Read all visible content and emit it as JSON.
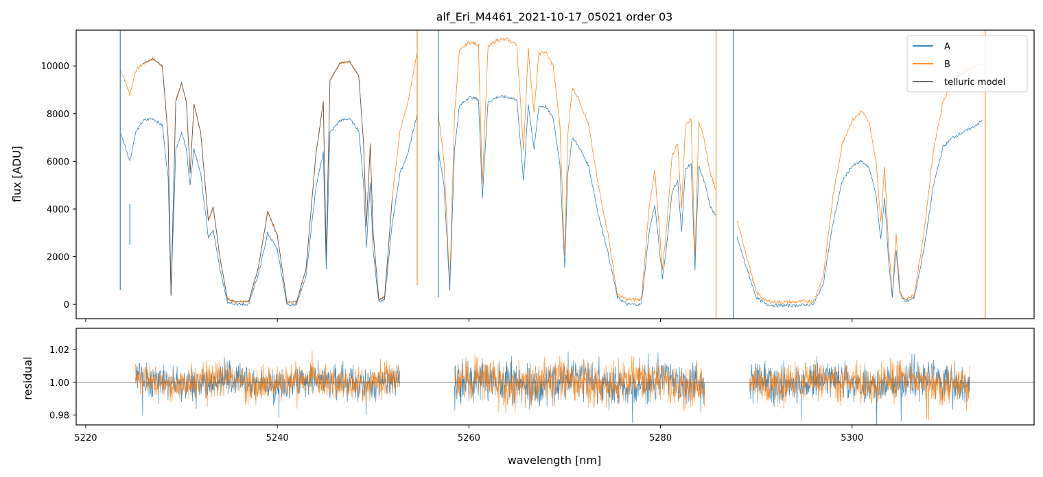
{
  "chart_data": [
    {
      "type": "line",
      "title": "alf_Eri_M4461_2021-10-17_05021  order 03",
      "xlabel": "",
      "ylabel": "flux [ADU]",
      "xlim": [
        5219,
        5319
      ],
      "ylim": [
        -600,
        11500
      ],
      "y_ticks": [
        0,
        2000,
        4000,
        6000,
        8000,
        10000
      ],
      "y_tick_labels": [
        "0",
        "2000",
        "4000",
        "6000",
        "8000",
        "10000"
      ],
      "x_ticks": [
        5220,
        5240,
        5260,
        5280,
        5300
      ],
      "legend": {
        "placement": "top-right",
        "entries": [
          {
            "label": "A",
            "color": "#1f77b4"
          },
          {
            "label": "B",
            "color": "#ff7f0e"
          },
          {
            "label": "telluric model",
            "color": "#555555"
          }
        ]
      },
      "series": [
        {
          "name": "B",
          "color": "#ff7f0e",
          "x": [
            5223.6,
            5224.0,
            5224.6,
            5225.2,
            5226.0,
            5227.0,
            5228.0,
            5228.6,
            5228.9,
            5229.4,
            5230.0,
            5230.5,
            5230.9,
            5231.3,
            5232.0,
            5232.8,
            5233.3,
            5234.0,
            5234.8,
            5236.0,
            5237.0,
            5238.0,
            5239.0,
            5240.0,
            5241.0,
            5242.0,
            5243.0,
            5244.0,
            5244.8,
            5245.1,
            5245.5,
            5246.5,
            5247.5,
            5248.5,
            5249.0,
            5249.3,
            5249.7,
            5250.0,
            5250.6,
            5251.2,
            5252.0,
            5252.8,
            5253.6,
            5254.2,
            5254.6
          ],
          "values": [
            9800,
            9500,
            8800,
            9800,
            10100,
            10300,
            10000,
            7000,
            400,
            8500,
            9300,
            8500,
            5500,
            8400,
            7200,
            3500,
            4100,
            2000,
            200,
            100,
            100,
            1500,
            3900,
            2900,
            100,
            100,
            1500,
            6200,
            8500,
            2000,
            9400,
            10100,
            10200,
            9600,
            6800,
            3300,
            6700,
            3000,
            200,
            300,
            4500,
            7300,
            8400,
            9700,
            10600
          ]
        },
        {
          "name": "A",
          "color": "#1f77b4",
          "x": [
            5223.6,
            5224.0,
            5224.6,
            5225.2,
            5226.0,
            5227.0,
            5228.0,
            5228.6,
            5228.9,
            5229.4,
            5230.0,
            5230.5,
            5230.9,
            5231.3,
            5232.0,
            5232.8,
            5233.3,
            5234.0,
            5234.8,
            5236.0,
            5237.0,
            5238.0,
            5239.0,
            5240.0,
            5241.0,
            5242.0,
            5243.0,
            5244.0,
            5244.8,
            5245.1,
            5245.5,
            5246.5,
            5247.5,
            5248.5,
            5249.0,
            5249.3,
            5249.7,
            5250.0,
            5250.6,
            5251.2,
            5252.0,
            5252.8,
            5253.6,
            5254.2,
            5254.6
          ],
          "values": [
            7200,
            6800,
            6000,
            7200,
            7700,
            7800,
            7500,
            5300,
            400,
            6500,
            7200,
            6500,
            5000,
            6500,
            5500,
            2800,
            3100,
            1500,
            100,
            0,
            0,
            1200,
            3000,
            2300,
            0,
            0,
            1200,
            4800,
            6400,
            1500,
            7200,
            7700,
            7800,
            7300,
            5100,
            2400,
            5100,
            2300,
            100,
            200,
            3400,
            5500,
            6300,
            7300,
            8000
          ]
        },
        {
          "name": "B",
          "color": "#ff7f0e",
          "x": [
            5256.8,
            5257.4,
            5258.0,
            5258.5,
            5259.0,
            5260.0,
            5261.0,
            5261.4,
            5262.0,
            5263.0,
            5264.0,
            5265.0,
            5265.7,
            5266.2,
            5266.8,
            5267.3,
            5268.0,
            5268.8,
            5269.5,
            5270.0,
            5270.3,
            5270.8,
            5271.5,
            5272.5,
            5273.5,
            5274.5,
            5275.5,
            5276.5,
            5278.0,
            5278.8,
            5279.4,
            5280.2,
            5280.6,
            5281.2,
            5281.8,
            5282.2,
            5282.6,
            5283.2,
            5283.6,
            5284.0,
            5284.6,
            5285.2,
            5285.8
          ],
          "values": [
            8000,
            6000,
            800,
            8000,
            10600,
            11000,
            10900,
            5000,
            10800,
            11100,
            11100,
            10900,
            6500,
            10700,
            8000,
            10500,
            10600,
            10000,
            7500,
            2000,
            7000,
            9100,
            8600,
            7500,
            5000,
            3000,
            400,
            200,
            200,
            4000,
            5600,
            1500,
            3000,
            6200,
            6800,
            4000,
            7500,
            7800,
            2000,
            7700,
            6800,
            5500,
            4800
          ]
        },
        {
          "name": "A",
          "color": "#1f77b4",
          "x": [
            5256.8,
            5257.4,
            5258.0,
            5258.5,
            5259.0,
            5260.0,
            5261.0,
            5261.4,
            5262.0,
            5263.0,
            5264.0,
            5265.0,
            5265.7,
            5266.2,
            5266.8,
            5267.3,
            5268.0,
            5268.8,
            5269.5,
            5270.0,
            5270.3,
            5270.8,
            5271.5,
            5272.5,
            5273.5,
            5274.5,
            5275.5,
            5276.5,
            5278.0,
            5278.8,
            5279.4,
            5280.2,
            5280.6,
            5281.2,
            5281.8,
            5282.2,
            5282.6,
            5283.2,
            5283.6,
            5284.0,
            5284.6,
            5285.2,
            5285.8
          ],
          "values": [
            6500,
            5000,
            600,
            6500,
            8300,
            8700,
            8600,
            4500,
            8500,
            8700,
            8700,
            8600,
            5200,
            8400,
            6500,
            8300,
            8300,
            7800,
            5900,
            1500,
            5400,
            7000,
            6600,
            5800,
            3800,
            2200,
            300,
            0,
            0,
            3000,
            4200,
            1100,
            2300,
            4700,
            5200,
            3000,
            5700,
            5900,
            1500,
            5800,
            5100,
            4100,
            3700
          ]
        },
        {
          "name": "B",
          "color": "#ff7f0e",
          "x": [
            5288.0,
            5289.0,
            5290.0,
            5291.0,
            5292.0,
            5294.0,
            5296.0,
            5297.0,
            5298.0,
            5299.0,
            5300.0,
            5301.0,
            5301.8,
            5302.5,
            5303.0,
            5303.4,
            5303.8,
            5304.2,
            5304.6,
            5305.0,
            5305.6,
            5306.5,
            5307.5,
            5308.5,
            5309.5,
            5310.5,
            5311.5,
            5312.5,
            5313.6
          ],
          "values": [
            3500,
            2000,
            500,
            150,
            100,
            100,
            150,
            1200,
            4500,
            6800,
            7700,
            8100,
            7600,
            6000,
            3500,
            5800,
            2500,
            400,
            3000,
            500,
            200,
            400,
            3000,
            6500,
            8500,
            9300,
            9700,
            9900,
            10100
          ]
        },
        {
          "name": "A",
          "color": "#1f77b4",
          "x": [
            5288.0,
            5289.0,
            5290.0,
            5291.0,
            5292.0,
            5294.0,
            5296.0,
            5297.0,
            5298.0,
            5299.0,
            5300.0,
            5301.0,
            5301.8,
            5302.5,
            5303.0,
            5303.4,
            5303.8,
            5304.2,
            5304.6,
            5305.0,
            5305.6,
            5306.5,
            5307.5,
            5308.5,
            5309.5,
            5310.5,
            5311.5,
            5312.5,
            5313.6
          ],
          "values": [
            2800,
            1500,
            300,
            0,
            -50,
            -50,
            0,
            900,
            3400,
            5200,
            5800,
            6000,
            5700,
            4600,
            2700,
            4500,
            1900,
            300,
            2300,
            400,
            100,
            300,
            2300,
            5000,
            6600,
            7000,
            7200,
            7400,
            7700
          ]
        },
        {
          "name": "telluric model",
          "color": "#555555",
          "x": [
            5226.0,
            5227.0,
            5228.0,
            5228.6,
            5228.9,
            5229.4,
            5230.0,
            5230.5,
            5230.9,
            5231.3,
            5232.0,
            5232.8,
            5233.3,
            5234.0,
            5234.8,
            5236.0,
            5237.0,
            5238.0,
            5239.0,
            5240.0,
            5241.0,
            5242.0,
            5243.0,
            5244.0,
            5244.8,
            5245.1,
            5245.5,
            5246.5,
            5247.5,
            5248.5,
            5249.0,
            5249.3,
            5249.7,
            5250.0,
            5250.6,
            5251.2,
            5252.0
          ],
          "values": [
            10100,
            10300,
            10000,
            7000,
            400,
            8500,
            9300,
            8500,
            5500,
            8400,
            7200,
            3500,
            4100,
            2000,
            200,
            100,
            100,
            1500,
            3900,
            2900,
            100,
            100,
            1500,
            6200,
            8500,
            2000,
            9400,
            10100,
            10200,
            9600,
            6800,
            3300,
            6700,
            3000,
            200,
            300,
            4500
          ]
        }
      ],
      "spikes": [
        {
          "x": 5223.6,
          "ymin": 600,
          "ymax": 11500,
          "color": "#1f77b4"
        },
        {
          "x": 5224.6,
          "ymin": 2500,
          "ymax": 4200,
          "color": "#1f77b4"
        },
        {
          "x": 5254.6,
          "ymin": 800,
          "ymax": 11500,
          "color": "#ff7f0e"
        },
        {
          "x": 5256.8,
          "ymin": 300,
          "ymax": 11500,
          "color": "#1f77b4"
        },
        {
          "x": 5285.8,
          "ymin": -600,
          "ymax": 11500,
          "color": "#ff7f0e"
        },
        {
          "x": 5287.6,
          "ymin": -600,
          "ymax": 11500,
          "color": "#1f77b4"
        },
        {
          "x": 5313.9,
          "ymin": -600,
          "ymax": 11500,
          "color": "#ff7f0e"
        }
      ]
    },
    {
      "type": "line",
      "title": "",
      "xlabel": "wavelength [nm]",
      "ylabel": "residual",
      "xlim": [
        5219,
        5319
      ],
      "ylim": [
        0.974,
        1.033
      ],
      "y_ticks": [
        0.98,
        1.0,
        1.02
      ],
      "y_tick_labels": [
        "0.98",
        "1.00",
        "1.02"
      ],
      "x_ticks": [
        5220,
        5240,
        5260,
        5280,
        5300
      ],
      "x_tick_labels": [
        "5220",
        "5240",
        "5260",
        "5280",
        "5300"
      ],
      "reference_line": 1.0,
      "segments": [
        {
          "x_start": 5225.2,
          "x_end": 5252.8,
          "amplitude": 0.007,
          "seed": 3
        },
        {
          "x_start": 5258.5,
          "x_end": 5284.6,
          "amplitude": 0.009,
          "seed": 11
        },
        {
          "x_start": 5289.3,
          "x_end": 5312.3,
          "amplitude": 0.008,
          "seed": 27
        }
      ],
      "series": [
        {
          "name": "A",
          "color": "#1f77b4"
        },
        {
          "name": "B",
          "color": "#ff7f0e"
        }
      ]
    }
  ]
}
